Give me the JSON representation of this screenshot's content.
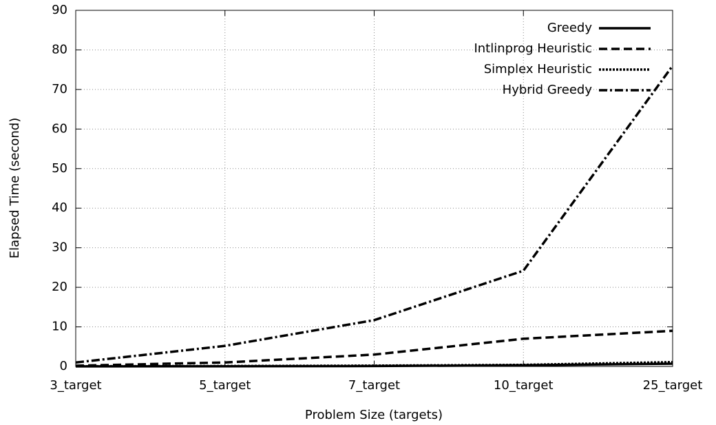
{
  "chart_data": {
    "type": "line",
    "x_label": "Problem Size (targets)",
    "y_label": "Elapsed Time (second)",
    "categories": [
      "3_target",
      "5_target",
      "7_target",
      "10_target",
      "25_target"
    ],
    "series": [
      {
        "name": "Greedy",
        "color": "#000000",
        "dash": "solid",
        "values": [
          0.02,
          0.05,
          0.1,
          0.3,
          0.7
        ]
      },
      {
        "name": "Intlinprog Heuristic",
        "color": "#000000",
        "dash": "dashed",
        "values": [
          0.2,
          1,
          3,
          7,
          9
        ]
      },
      {
        "name": "Simplex Heuristic",
        "color": "#000000",
        "dash": "dotted",
        "values": [
          0.05,
          0.1,
          0.2,
          0.4,
          1.1
        ]
      },
      {
        "name": "Hybrid Greedy",
        "color": "#000000",
        "dash": "dashdot",
        "values": [
          1,
          5.2,
          11.7,
          24.2,
          76
        ]
      }
    ],
    "ylim": [
      0,
      90
    ],
    "yticks": [
      0,
      10,
      20,
      30,
      40,
      50,
      60,
      70,
      80,
      90
    ],
    "grid": true,
    "legend": "top-right"
  }
}
